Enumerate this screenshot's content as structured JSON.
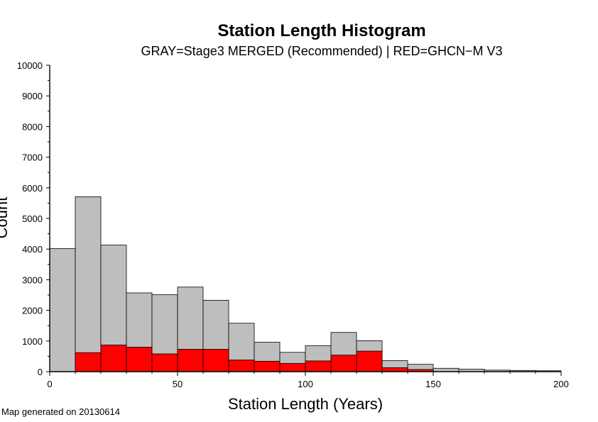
{
  "chart_data": {
    "type": "bar",
    "title": "Station Length Histogram",
    "subtitle": "GRAY=Stage3 MERGED (Recommended) | RED=GHCN−M V3",
    "xlabel": "Station Length (Years)",
    "ylabel": "Count",
    "xlim": [
      0,
      200
    ],
    "ylim": [
      0,
      10000
    ],
    "x_ticks": [
      0,
      50,
      100,
      150,
      200
    ],
    "y_ticks": [
      0,
      1000,
      2000,
      3000,
      4000,
      5000,
      6000,
      7000,
      8000,
      9000,
      10000
    ],
    "bin_width": 10,
    "bin_starts": [
      0,
      10,
      20,
      30,
      40,
      50,
      60,
      70,
      80,
      90,
      100,
      110,
      120,
      130,
      140,
      150,
      160,
      170,
      180,
      190
    ],
    "series": [
      {
        "name": "GRAY=Stage3 MERGED (Recommended)",
        "color": "#bebebe",
        "values": [
          4020,
          5710,
          4130,
          2570,
          2510,
          2760,
          2330,
          1580,
          960,
          630,
          850,
          1280,
          1010,
          360,
          240,
          110,
          80,
          50,
          40,
          30
        ]
      },
      {
        "name": "RED=GHCN−M V3",
        "color": "#ff0000",
        "values": [
          0,
          620,
          870,
          800,
          580,
          730,
          730,
          380,
          340,
          270,
          350,
          540,
          670,
          130,
          70,
          0,
          0,
          0,
          0,
          0
        ]
      }
    ],
    "grid": false
  },
  "footer": {
    "text": "Map generated on 20130614"
  }
}
